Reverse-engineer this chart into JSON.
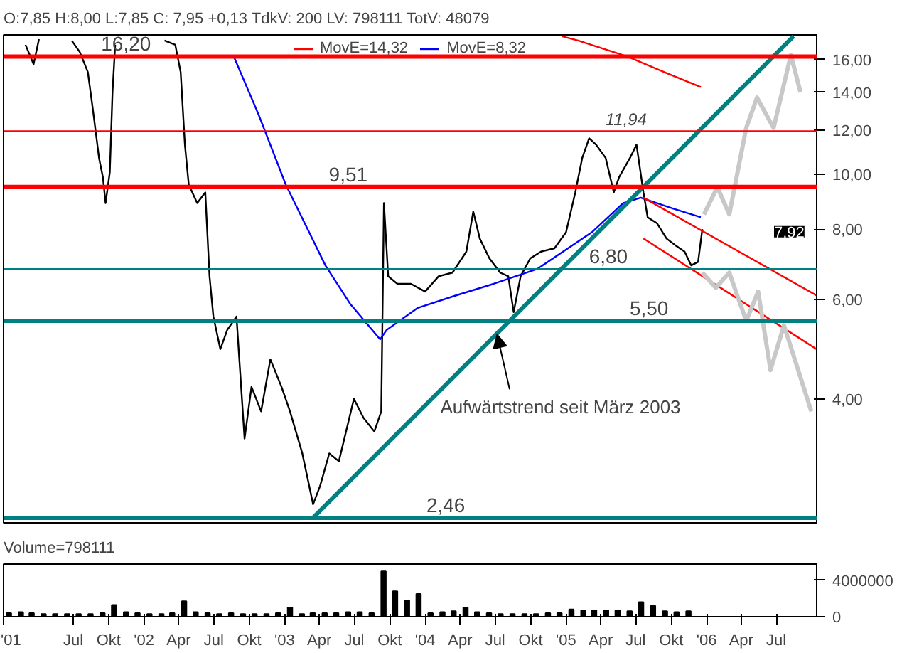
{
  "chart_data": [
    {
      "type": "line",
      "title": "O:7,85 H:8,00 L:7,85 C: 7,95 +0,13 TdkV: 200 LV: 798111 TotV: 48079",
      "log": true,
      "legend": "top",
      "grid": false,
      "tick_labels": "y",
      "xlim": [
        "2001-01-01",
        "2006-10-14"
      ],
      "ylim": [
        2.41,
        17.7
      ],
      "yticks": [
        {
          "value": 4,
          "label": "4,00"
        },
        {
          "value": 6,
          "label": "6,00"
        },
        {
          "value": 8,
          "label": "8,00"
        },
        {
          "value": 10,
          "label": "10,00"
        },
        {
          "value": 12,
          "label": "12,00"
        },
        {
          "value": 14,
          "label": "14,00"
        },
        {
          "value": 16,
          "label": "16,00"
        }
      ],
      "series": [
        {
          "color": "#000000",
          "x": [
            "2001-02-27",
            "2001-03-20",
            "2001-04-03",
            "2001-04-14",
            "2001-06-27",
            "2001-07-18",
            "2001-08-08",
            "2001-08-22",
            "2001-09-06",
            "2001-09-16",
            "2001-09-23",
            "2001-10-04",
            "2001-10-11",
            "2001-10-18",
            "2001-10-25",
            "2002-02-23",
            "2002-03-23",
            "2002-04-06",
            "2002-04-17",
            "2002-04-27",
            "2002-05-19",
            "2002-06-09",
            "2002-06-20",
            "2002-06-30",
            "2002-07-18",
            "2002-08-05",
            "2002-08-29",
            "2002-09-19",
            "2002-10-07",
            "2002-11-01",
            "2002-11-25",
            "2002-12-24",
            "2003-01-15",
            "2003-02-16",
            "2003-03-16",
            "2003-04-03",
            "2003-04-27",
            "2003-05-22",
            "2003-06-30",
            "2003-07-25",
            "2003-08-22",
            "2003-09-09",
            "2003-09-16",
            "2003-09-27",
            "2003-10-21",
            "2003-11-25",
            "2004-01-01",
            "2004-02-05",
            "2004-03-12",
            "2004-04-17",
            "2004-05-05",
            "2004-05-22",
            "2004-06-16",
            "2004-07-14",
            "2004-08-04",
            "2004-08-18",
            "2004-09-05",
            "2004-09-30",
            "2004-10-28",
            "2004-12-02",
            "2005-01-01",
            "2005-01-25",
            "2005-02-12",
            "2005-03-02",
            "2005-03-20",
            "2005-04-14",
            "2005-05-05",
            "2005-05-19",
            "2005-06-16",
            "2005-07-03",
            "2005-07-21",
            "2005-08-01",
            "2005-08-25",
            "2005-09-19",
            "2005-10-11",
            "2005-11-05",
            "2005-11-22",
            "2005-12-10",
            "2005-12-21"
          ],
          "values": [
            17.0,
            15.7,
            17.4,
            null,
            17.3,
            16.5,
            15.2,
            12.9,
            10.7,
            9.9,
            8.9,
            10.1,
            14.0,
            17.0,
            null,
            17.3,
            17.0,
            15.2,
            11.3,
            9.6,
            8.9,
            9.3,
            6.6,
            5.6,
            4.9,
            5.3,
            5.6,
            3.4,
            4.2,
            3.8,
            4.7,
            4.2,
            3.8,
            3.2,
            2.6,
            2.8,
            3.2,
            3.1,
            4.0,
            3.7,
            3.5,
            3.8,
            8.9,
            6.6,
            6.4,
            6.4,
            6.2,
            6.6,
            6.7,
            7.3,
            8.6,
            7.7,
            7.1,
            6.7,
            6.6,
            5.7,
            6.6,
            7.1,
            7.3,
            7.4,
            7.9,
            9.3,
            10.7,
            11.6,
            11.3,
            10.7,
            9.3,
            9.9,
            10.7,
            11.3,
            9.3,
            8.4,
            8.2,
            7.7,
            7.5,
            7.3,
            6.9,
            7.0,
            8.0
          ]
        },
        {
          "name": "MovE=14,32",
          "color": "#ff0000",
          "x": [
            "2004-12-21",
            "2005-02-01",
            "2005-06-09",
            "2005-09-23",
            "2005-12-17"
          ],
          "values": [
            17.6,
            17.3,
            16.2,
            15.1,
            14.3
          ]
        },
        {
          "name": "MovE=8,32",
          "color": "#0000ff",
          "x": [
            "2002-08-22",
            "2002-10-25",
            "2003-01-04",
            "2003-04-17",
            "2003-06-20",
            "2003-09-06",
            "2003-09-23",
            "2003-12-13",
            "2004-03-20",
            "2004-06-27",
            "2004-10-18",
            "2005-03-09",
            "2005-05-29",
            "2005-07-14",
            "2005-10-07",
            "2005-12-17"
          ],
          "values": [
            16.2,
            12.8,
            9.6,
            6.9,
            5.9,
            5.1,
            5.3,
            5.8,
            6.1,
            6.4,
            6.8,
            7.9,
            8.9,
            9.1,
            8.7,
            8.4
          ]
        },
        {
          "color": "#008080",
          "x": [
            "2003-03-16",
            "2006-08-15"
          ],
          "values": [
            2.46,
            17.6
          ]
        },
        {
          "color": "#ff0000",
          "x": [
            "2005-07-21",
            "2006-10-14"
          ],
          "values": [
            9.1,
            6.1
          ]
        },
        {
          "color": "#ff0000",
          "x": [
            "2005-07-21",
            "2006-10-14"
          ],
          "values": [
            7.7,
            4.9
          ]
        },
        {
          "color": "#c8c8c8",
          "x": [
            "2005-12-25",
            "2006-01-29",
            "2006-03-01",
            "2006-04-14",
            "2006-05-12",
            "2006-06-24",
            "2006-08-08",
            "2006-09-02"
          ],
          "values": [
            8.5,
            9.5,
            8.5,
            12.1,
            13.7,
            12.1,
            16.3,
            14.0
          ]
        },
        {
          "color": "#c8c8c8",
          "x": [
            "2005-12-21",
            "2006-01-25",
            "2006-03-01",
            "2006-04-14",
            "2006-05-15",
            "2006-06-16",
            "2006-07-21",
            "2006-09-30"
          ],
          "values": [
            6.7,
            6.3,
            6.7,
            5.5,
            6.2,
            4.5,
            5.4,
            3.8
          ]
        }
      ],
      "ref_lines": [
        {
          "axis": "y",
          "value": 16.2,
          "label": "16,20",
          "color": "#ff0000"
        },
        {
          "axis": "y",
          "value": 11.94,
          "label": "11,94",
          "color": "#ff0000"
        },
        {
          "axis": "y",
          "value": 9.51,
          "label": "9,51",
          "color": "#ff0000"
        },
        {
          "axis": "y",
          "value": 6.8,
          "label": "6,80",
          "color": "#008080"
        },
        {
          "axis": "y",
          "value": 5.5,
          "label": "5,50",
          "color": "#008080"
        },
        {
          "axis": "y",
          "value": 2.46,
          "label": "2,46",
          "color": "#008080"
        }
      ],
      "annotations": [
        {
          "text": "Aufwärtstrend seit März 2003",
          "x": "2004-07-06",
          "y": 5.2
        },
        {
          "text": "7,92",
          "y": 7.92
        }
      ]
    },
    {
      "type": "bar",
      "title": "Volume=798111",
      "color": "#000000",
      "grid": false,
      "xlim": [
        "2001-01-01",
        "2006-10-14"
      ],
      "ylim": [
        0,
        5800000
      ],
      "yticks": [
        {
          "value": 0,
          "label": "0"
        },
        {
          "value": 4000000,
          "label": "4000000"
        }
      ],
      "xticks": [
        {
          "value": "2001-01-01",
          "label": "'01"
        },
        {
          "value": "2001-07-01",
          "label": "Jul"
        },
        {
          "value": "2001-10-01",
          "label": "Okt"
        },
        {
          "value": "2002-01-01",
          "label": "'02"
        },
        {
          "value": "2002-04-01",
          "label": "Apr"
        },
        {
          "value": "2002-07-01",
          "label": "Jul"
        },
        {
          "value": "2002-10-01",
          "label": "Okt"
        },
        {
          "value": "2003-01-01",
          "label": "'03"
        },
        {
          "value": "2003-04-01",
          "label": "Apr"
        },
        {
          "value": "2003-07-01",
          "label": "Jul"
        },
        {
          "value": "2003-10-01",
          "label": "Okt"
        },
        {
          "value": "2004-01-01",
          "label": "'04"
        },
        {
          "value": "2004-04-01",
          "label": "Apr"
        },
        {
          "value": "2004-07-01",
          "label": "Jul"
        },
        {
          "value": "2004-10-01",
          "label": "Okt"
        },
        {
          "value": "2005-01-01",
          "label": "'05"
        },
        {
          "value": "2005-04-01",
          "label": "Apr"
        },
        {
          "value": "2005-07-01",
          "label": "Jul"
        },
        {
          "value": "2005-10-01",
          "label": "Okt"
        },
        {
          "value": "2006-01-01",
          "label": "'06"
        },
        {
          "value": "2006-04-01",
          "label": "Apr"
        },
        {
          "value": "2006-07-01",
          "label": "Jul"
        }
      ],
      "x": [
        "2001-01-15",
        "2001-02-15",
        "2001-03-15",
        "2001-04-15",
        "2001-05-15",
        "2001-06-15",
        "2001-07-15",
        "2001-08-15",
        "2001-09-15",
        "2001-10-15",
        "2001-11-15",
        "2001-12-15",
        "2002-01-15",
        "2002-02-15",
        "2002-03-15",
        "2002-04-15",
        "2002-05-15",
        "2002-06-15",
        "2002-07-15",
        "2002-08-15",
        "2002-09-15",
        "2002-10-15",
        "2002-11-15",
        "2002-12-15",
        "2003-01-15",
        "2003-02-15",
        "2003-03-15",
        "2003-04-15",
        "2003-05-15",
        "2003-06-15",
        "2003-07-15",
        "2003-08-15",
        "2003-09-15",
        "2003-10-15",
        "2003-11-15",
        "2003-12-15",
        "2004-01-15",
        "2004-02-15",
        "2004-03-15",
        "2004-04-15",
        "2004-05-15",
        "2004-06-15",
        "2004-07-15",
        "2004-08-15",
        "2004-09-15",
        "2004-10-15",
        "2004-11-15",
        "2004-12-15",
        "2005-01-15",
        "2005-02-15",
        "2005-03-15",
        "2005-04-15",
        "2005-05-15",
        "2005-06-15",
        "2005-07-15",
        "2005-08-15",
        "2005-09-15",
        "2005-10-15",
        "2005-11-15"
      ],
      "values": [
        400000,
        500000,
        400000,
        300000,
        300000,
        300000,
        300000,
        300000,
        400000,
        1300000,
        500000,
        400000,
        300000,
        300000,
        400000,
        1700000,
        500000,
        400000,
        300000,
        400000,
        300000,
        300000,
        300000,
        400000,
        1000000,
        300000,
        400000,
        400000,
        400000,
        500000,
        500000,
        400000,
        5000000,
        2800000,
        1800000,
        2500000,
        400000,
        500000,
        600000,
        1000000,
        500000,
        400000,
        300000,
        300000,
        300000,
        300000,
        400000,
        400000,
        800000,
        700000,
        700000,
        700000,
        700000,
        600000,
        1600000,
        1200000,
        600000,
        500000,
        600000
      ]
    }
  ]
}
